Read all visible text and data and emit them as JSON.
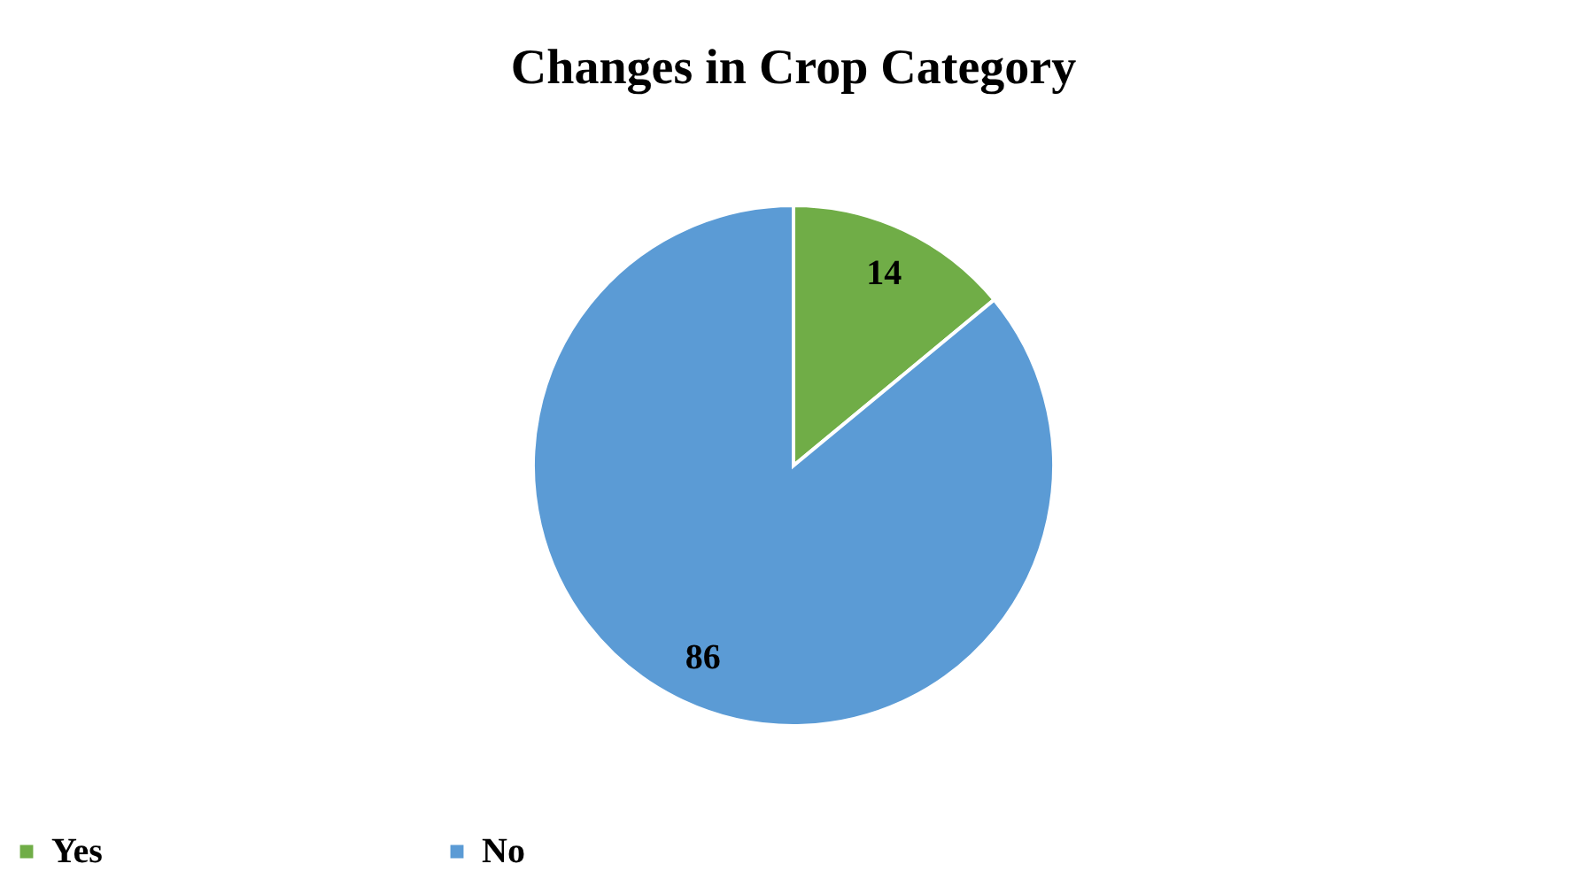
{
  "chart_data": {
    "type": "pie",
    "title": "Changes in Crop Category",
    "categories": [
      "Yes",
      "No"
    ],
    "values": [
      14,
      86
    ],
    "colors": [
      "#70ad47",
      "#5b9bd5"
    ],
    "data_labels": true,
    "legend": "bottom"
  }
}
